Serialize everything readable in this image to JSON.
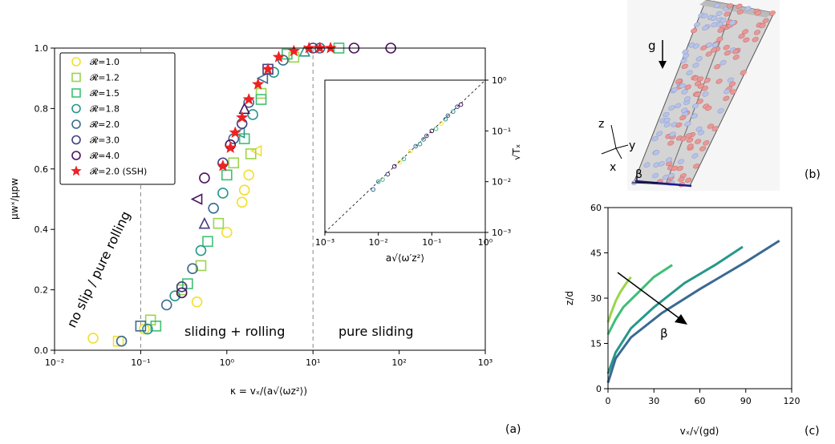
{
  "panels": {
    "a": "(a)",
    "b": "(b)",
    "c": "(c)"
  },
  "chart_data": [
    {
      "panel": "(a)",
      "type": "scatter",
      "x_scale": "log",
      "xlim": [
        0.01,
        1000
      ],
      "ylim": [
        0,
        1
      ],
      "xlabel": "κ = vₓ/(a√⟨ωz²⟩)",
      "ylabel": "μwˣ/μpw",
      "x_ticks": [
        "10⁻²",
        "10⁻¹",
        "10⁰",
        "10¹",
        "10²",
        "10³"
      ],
      "y_ticks": [
        "0.0",
        "0.2",
        "0.4",
        "0.6",
        "0.8",
        "1.0"
      ],
      "region_lines_x": [
        0.1,
        10
      ],
      "region_labels": [
        "no slip / pure rolling",
        "sliding + rolling",
        "pure sliding"
      ],
      "legend_position": "top-left",
      "legend": [
        {
          "label": "𝓡=1.0",
          "color": "#f2df2e",
          "marker": "circle"
        },
        {
          "label": "𝓡=1.2",
          "color": "#9ad54a",
          "marker": "square"
        },
        {
          "label": "𝓡=1.5",
          "color": "#3fbf76",
          "marker": "square"
        },
        {
          "label": "𝓡=1.8",
          "color": "#27978b",
          "marker": "circle"
        },
        {
          "label": "𝓡=2.0",
          "color": "#3a6a92",
          "marker": "circle"
        },
        {
          "label": "𝓡=3.0",
          "color": "#413d82",
          "marker": "circle"
        },
        {
          "label": "𝓡=4.0",
          "color": "#4a1460",
          "marker": "circle"
        },
        {
          "label": "𝓡=2.0 (SSH)",
          "color": "#ee2222",
          "marker": "star"
        }
      ],
      "series": [
        {
          "name": "𝓡=1.0",
          "points": [
            [
              0.028,
              0.04
            ],
            [
              0.055,
              0.03
            ],
            [
              0.11,
              0.07
            ],
            [
              0.45,
              0.16
            ],
            [
              1.0,
              0.39
            ],
            [
              1.5,
              0.49
            ],
            [
              1.8,
              0.58
            ],
            [
              2.2,
              0.66
            ],
            [
              1.6,
              0.53
            ]
          ]
        },
        {
          "name": "𝓡=1.2",
          "points": [
            [
              0.13,
              0.1
            ],
            [
              0.3,
              0.2
            ],
            [
              0.5,
              0.28
            ],
            [
              0.8,
              0.42
            ],
            [
              1.2,
              0.62
            ],
            [
              1.9,
              0.65
            ],
            [
              2.5,
              0.85
            ],
            [
              6.0,
              0.97
            ]
          ]
        },
        {
          "name": "𝓡=1.5",
          "points": [
            [
              0.15,
              0.08
            ],
            [
              0.35,
              0.22
            ],
            [
              0.6,
              0.36
            ],
            [
              1.0,
              0.58
            ],
            [
              1.6,
              0.7
            ],
            [
              2.5,
              0.83
            ],
            [
              5.0,
              0.98
            ],
            [
              20.0,
              1.0
            ]
          ]
        },
        {
          "name": "𝓡=1.8",
          "points": [
            [
              0.12,
              0.07
            ],
            [
              0.25,
              0.18
            ],
            [
              0.5,
              0.33
            ],
            [
              0.9,
              0.52
            ],
            [
              1.4,
              0.72
            ],
            [
              2.0,
              0.78
            ],
            [
              3.5,
              0.92
            ],
            [
              8.0,
              0.99
            ]
          ]
        },
        {
          "name": "𝓡=2.0",
          "points": [
            [
              0.06,
              0.03
            ],
            [
              0.1,
              0.08
            ],
            [
              0.2,
              0.15
            ],
            [
              0.4,
              0.27
            ],
            [
              0.7,
              0.47
            ],
            [
              1.2,
              0.7
            ],
            [
              1.8,
              0.82
            ],
            [
              2.6,
              0.9
            ],
            [
              4.5,
              0.96
            ],
            [
              12.0,
              1.0
            ]
          ]
        },
        {
          "name": "𝓡=3.0",
          "points": [
            [
              0.3,
              0.21
            ],
            [
              0.55,
              0.42
            ],
            [
              0.9,
              0.62
            ],
            [
              1.5,
              0.75
            ],
            [
              3.0,
              0.93
            ],
            [
              10.0,
              1.0
            ]
          ]
        },
        {
          "name": "𝓡=4.0",
          "points": [
            [
              0.3,
              0.19
            ],
            [
              0.45,
              0.5
            ],
            [
              0.55,
              0.57
            ],
            [
              1.1,
              0.68
            ],
            [
              1.6,
              0.8
            ],
            [
              30.0,
              1.0
            ],
            [
              80.0,
              1.0
            ]
          ]
        },
        {
          "name": "𝓡=2.0 (SSH)",
          "points": [
            [
              0.9,
              0.61
            ],
            [
              1.1,
              0.67
            ],
            [
              1.25,
              0.72
            ],
            [
              1.5,
              0.77
            ],
            [
              1.8,
              0.83
            ],
            [
              2.3,
              0.88
            ],
            [
              3.0,
              0.93
            ],
            [
              4.0,
              0.97
            ],
            [
              6.0,
              0.99
            ],
            [
              9.0,
              1.0
            ],
            [
              12.0,
              1.0
            ],
            [
              16.0,
              1.0
            ]
          ]
        }
      ]
    },
    {
      "panel": "(a) inset",
      "type": "scatter",
      "x_scale": "log",
      "y_scale": "log",
      "xlim": [
        0.001,
        1
      ],
      "ylim": [
        0.001,
        1
      ],
      "xlabel": "a√⟨ω′z²⟩",
      "ylabel": "√Tₓ",
      "x_ticks": [
        "10⁻³",
        "10⁻²",
        "10⁻¹",
        "10⁰"
      ],
      "y_ticks": [
        "10⁻³",
        "10⁻²",
        "10⁻¹",
        "10⁰"
      ],
      "reference_line": "y = x",
      "points": [
        [
          0.008,
          0.007
        ],
        [
          0.01,
          0.01
        ],
        [
          0.015,
          0.014
        ],
        [
          0.02,
          0.02
        ],
        [
          0.03,
          0.028
        ],
        [
          0.04,
          0.04
        ],
        [
          0.05,
          0.05
        ],
        [
          0.06,
          0.055
        ],
        [
          0.08,
          0.08
        ],
        [
          0.1,
          0.1
        ],
        [
          0.12,
          0.11
        ],
        [
          0.15,
          0.14
        ],
        [
          0.2,
          0.2
        ],
        [
          0.25,
          0.24
        ],
        [
          0.3,
          0.3
        ],
        [
          0.35,
          0.33
        ],
        [
          0.012,
          0.011
        ],
        [
          0.025,
          0.024
        ],
        [
          0.07,
          0.068
        ],
        [
          0.18,
          0.17
        ]
      ]
    },
    {
      "panel": "(c)",
      "type": "line",
      "xlim": [
        0,
        120
      ],
      "ylim": [
        0,
        60
      ],
      "xlabel": "vₓ/√(gd)",
      "ylabel": "z/d",
      "x_ticks": [
        "0",
        "30",
        "60",
        "90",
        "120"
      ],
      "y_ticks": [
        "0",
        "15",
        "30",
        "45",
        "60"
      ],
      "annotation": "β",
      "series": [
        {
          "color": "#9ad54a",
          "points": [
            [
              0,
              22
            ],
            [
              2,
              25
            ],
            [
              5,
              29
            ],
            [
              8,
              32
            ],
            [
              12,
              35
            ],
            [
              15,
              37
            ]
          ]
        },
        {
          "color": "#3fbf76",
          "points": [
            [
              0,
              18
            ],
            [
              5,
              23
            ],
            [
              10,
              27
            ],
            [
              20,
              32
            ],
            [
              30,
              37
            ],
            [
              42,
              41
            ]
          ]
        },
        {
          "color": "#27978b",
          "points": [
            [
              0,
              5
            ],
            [
              5,
              12
            ],
            [
              15,
              20
            ],
            [
              30,
              27
            ],
            [
              50,
              35
            ],
            [
              70,
              41
            ],
            [
              88,
              47
            ]
          ]
        },
        {
          "color": "#3a6a92",
          "points": [
            [
              0,
              2
            ],
            [
              5,
              10
            ],
            [
              15,
              17
            ],
            [
              35,
              25
            ],
            [
              60,
              33
            ],
            [
              90,
              42
            ],
            [
              112,
              49
            ]
          ]
        }
      ]
    }
  ],
  "panel_b": {
    "gravity_label": "g",
    "axes": [
      "z",
      "y",
      "x"
    ],
    "angle_label": "β"
  }
}
